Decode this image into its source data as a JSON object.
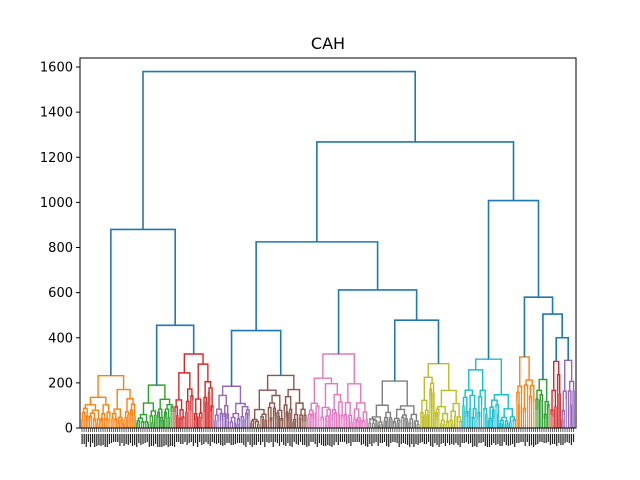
{
  "chart_data": {
    "type": "dendrogram",
    "title": "CAH",
    "xlabel": "",
    "ylabel": "",
    "ylim": [
      0,
      1640
    ],
    "yticks": [
      0,
      200,
      400,
      600,
      800,
      1000,
      1200,
      1400,
      1600
    ],
    "grid": false,
    "legend": "none",
    "leaf_labels": "dense, unreadable",
    "link_color": "#1f77b4",
    "merges": [
      {
        "name": "root",
        "height": 1580,
        "children": [
          "left-branch",
          "right-branch"
        ]
      },
      {
        "name": "left-branch",
        "height": 880,
        "children": [
          "orange-cluster",
          "green-red-branch"
        ]
      },
      {
        "name": "green-red-branch",
        "height": 455,
        "children": [
          "green-cluster",
          "red-cluster"
        ]
      },
      {
        "name": "right-branch",
        "height": 1268,
        "children": [
          "middle-branch",
          "far-right-branch"
        ]
      },
      {
        "name": "middle-branch",
        "height": 825,
        "children": [
          "purple-brown-branch",
          "pink-olive-branch"
        ]
      },
      {
        "name": "purple-brown-branch",
        "height": 432,
        "children": [
          "purple-cluster",
          "brown-cluster"
        ]
      },
      {
        "name": "pink-olive-branch",
        "height": 612,
        "children": [
          "pink-cluster",
          "gray-olive-branch"
        ]
      },
      {
        "name": "gray-olive-branch",
        "height": 478,
        "children": [
          "gray-cluster",
          "olive-cluster"
        ]
      },
      {
        "name": "far-right-branch",
        "height": 1008,
        "children": [
          "cyan-cluster",
          "small-clusters-branch"
        ]
      },
      {
        "name": "small-clusters-branch",
        "height": 580,
        "children": [
          "orange2-cluster",
          "green2-red2-purple2"
        ]
      },
      {
        "name": "green2-red2-purple2",
        "height": 505,
        "children": [
          "green2-cluster",
          "red2-purple2"
        ]
      },
      {
        "name": "red2-purple2",
        "height": 400,
        "children": [
          "red2-cluster",
          "purple2-cluster"
        ]
      }
    ],
    "clusters": [
      {
        "name": "orange-cluster",
        "color": "#ff7f0e",
        "height": 232
      },
      {
        "name": "green-cluster",
        "color": "#2ca02c",
        "height": 190
      },
      {
        "name": "red-cluster",
        "color": "#d62728",
        "height": 328
      },
      {
        "name": "purple-cluster",
        "color": "#9467bd",
        "height": 185
      },
      {
        "name": "brown-cluster",
        "color": "#8c564b",
        "height": 233
      },
      {
        "name": "pink-cluster",
        "color": "#e377c2",
        "height": 328
      },
      {
        "name": "gray-cluster",
        "color": "#7f7f7f",
        "height": 208
      },
      {
        "name": "olive-cluster",
        "color": "#bcbd22",
        "height": 285
      },
      {
        "name": "cyan-cluster",
        "color": "#17becf",
        "height": 305
      },
      {
        "name": "orange2-cluster",
        "color": "#ff7f0e",
        "height": 315
      },
      {
        "name": "green2-cluster",
        "color": "#2ca02c",
        "height": 215
      },
      {
        "name": "red2-cluster",
        "color": "#d62728",
        "height": 295
      },
      {
        "name": "purple2-cluster",
        "color": "#9467bd",
        "height": 300
      }
    ]
  }
}
